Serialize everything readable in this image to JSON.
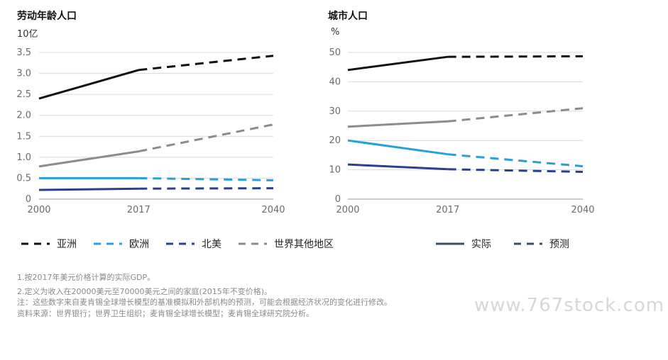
{
  "charts": [
    {
      "title": "劳动年龄人口",
      "unit": "10亿",
      "chart_data": {
        "type": "line",
        "title": "劳动年龄人口",
        "ylabel": "10亿",
        "x_ticks": [
          "2000",
          "2017",
          "2040"
        ],
        "y_ticks": [
          "0",
          "0.5",
          "1.0",
          "1.5",
          "2.0",
          "2.5",
          "3.0",
          "3.5"
        ],
        "ylim": [
          0,
          3.5
        ],
        "grid": true,
        "series": [
          {
            "name": "亚洲",
            "color": "#111111",
            "actual": [
              [
                2000,
                2.4
              ],
              [
                2017,
                3.08
              ]
            ],
            "forecast": [
              [
                2017,
                3.08
              ],
              [
                2040,
                3.42
              ]
            ]
          },
          {
            "name": "欧洲",
            "color": "#27a0d9",
            "actual": [
              [
                2000,
                0.5
              ],
              [
                2017,
                0.5
              ]
            ],
            "forecast": [
              [
                2017,
                0.5
              ],
              [
                2040,
                0.45
              ]
            ]
          },
          {
            "name": "北美",
            "color": "#2b3f8f",
            "actual": [
              [
                2000,
                0.22
              ],
              [
                2017,
                0.25
              ]
            ],
            "forecast": [
              [
                2017,
                0.25
              ],
              [
                2040,
                0.26
              ]
            ]
          },
          {
            "name": "世界其他地区",
            "color": "#8c8c8c",
            "actual": [
              [
                2000,
                0.78
              ],
              [
                2017,
                1.14
              ]
            ],
            "forecast": [
              [
                2017,
                1.14
              ],
              [
                2040,
                1.78
              ]
            ]
          }
        ]
      }
    },
    {
      "title": "城市人口",
      "unit": "%",
      "chart_data": {
        "type": "line",
        "title": "城市人口",
        "ylabel": "%",
        "x_ticks": [
          "2000",
          "2017",
          "2040"
        ],
        "y_ticks": [
          "0",
          "10",
          "20",
          "30",
          "40",
          "50"
        ],
        "ylim": [
          0,
          50
        ],
        "grid": true,
        "series": [
          {
            "name": "亚洲",
            "color": "#111111",
            "actual": [
              [
                2000,
                44
              ],
              [
                2017,
                48.5
              ]
            ],
            "forecast": [
              [
                2017,
                48.5
              ],
              [
                2040,
                48.7
              ]
            ]
          },
          {
            "name": "欧洲",
            "color": "#27a0d9",
            "actual": [
              [
                2000,
                20
              ],
              [
                2017,
                15.3
              ]
            ],
            "forecast": [
              [
                2017,
                15.3
              ],
              [
                2040,
                11.2
              ]
            ]
          },
          {
            "name": "北美",
            "color": "#2b3f8f",
            "actual": [
              [
                2000,
                11.8
              ],
              [
                2017,
                10.2
              ]
            ],
            "forecast": [
              [
                2017,
                10.2
              ],
              [
                2040,
                9.3
              ]
            ]
          },
          {
            "name": "世界其他地区",
            "color": "#8c8c8c",
            "actual": [
              [
                2000,
                24.7
              ],
              [
                2017,
                26.5
              ]
            ],
            "forecast": [
              [
                2017,
                26.5
              ],
              [
                2040,
                31
              ]
            ]
          }
        ]
      }
    }
  ],
  "legend_regions": [
    {
      "label": "亚洲",
      "color": "#111111"
    },
    {
      "label": "欧洲",
      "color": "#27a0d9"
    },
    {
      "label": "北美",
      "color": "#2b3f8f"
    },
    {
      "label": "世界其他地区",
      "color": "#8c8c8c"
    }
  ],
  "legend_style": [
    {
      "label": "实际",
      "color": "#3d4f63",
      "style": "solid"
    },
    {
      "label": "预测",
      "color": "#3d4f63",
      "style": "dashed"
    }
  ],
  "footnotes": [
    "1.按2017年美元价格计算的实际GDP。",
    "2.定义为收入在20000美元至70000美元之间的家庭(2015年不变价格)。",
    "注：这些数字来自麦肯锡全球增长模型的基准模拟和外部机构的预测，可能会根据经济状况的变化进行修改。",
    "资料来源：世界银行；世界卫生组织；麦肯锡全球增长模型；麦肯锡全球研究院分析。"
  ],
  "watermark": "www.767stock.com"
}
